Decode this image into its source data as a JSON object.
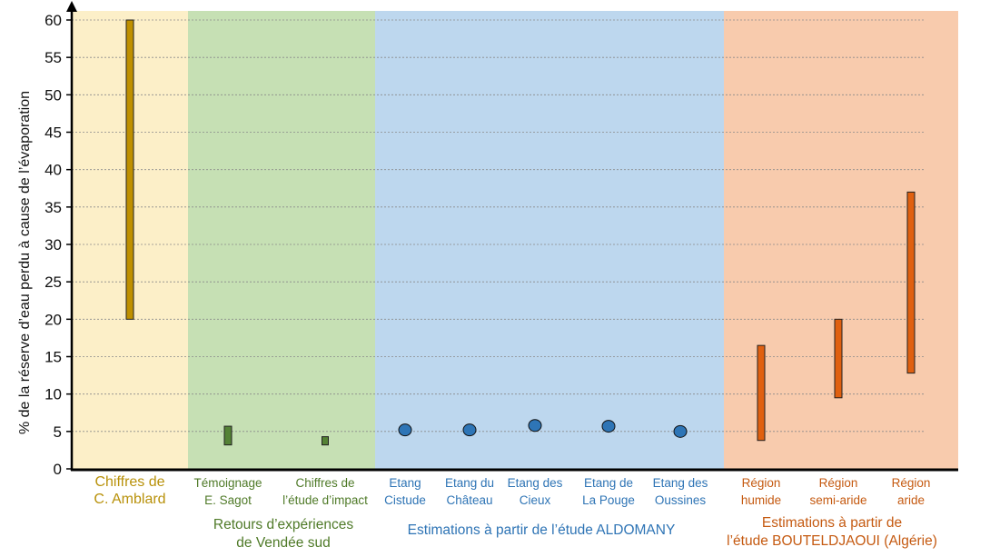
{
  "chart_data": {
    "type": "range",
    "ylabel": "% de la réserve d’eau perdu à cause de l’évaporation",
    "ylim": [
      0,
      60
    ],
    "yticks": [
      0,
      5,
      10,
      15,
      20,
      25,
      30,
      35,
      40,
      45,
      50,
      55,
      60
    ],
    "grid": "horizontal-dashed",
    "groups": [
      {
        "label_lines": [],
        "color": "#fcefc8",
        "text_color": "#b8910a",
        "from": 0,
        "to": 1
      },
      {
        "label_lines": [
          "Retours d’expériences",
          "de Vendée sud"
        ],
        "color": "#c6e0b4",
        "text_color": "#4f7a28",
        "from": 1,
        "to": 3
      },
      {
        "label_lines": [
          "Estimations à partir de l’étude ALDOMANY"
        ],
        "color": "#bdd7ee",
        "text_color": "#2e74b5",
        "from": 3,
        "to": 8
      },
      {
        "label_lines": [
          "Estimations à partir de",
          "l’étude BOUTELDJAOUI (Algérie)"
        ],
        "color": "#f8cbad",
        "text_color": "#c55a11",
        "from": 8,
        "to": 11
      }
    ],
    "points": [
      {
        "label_lines": [
          "Chiffres de",
          "C. Amblard"
        ],
        "kind": "range",
        "low": 20,
        "high": 60,
        "fill": "#bf9000"
      },
      {
        "label_lines": [
          "Témoignage",
          "E. Sagot"
        ],
        "kind": "range",
        "low": 3.2,
        "high": 5.7,
        "fill": "#548235"
      },
      {
        "label_lines": [
          "Chiffres de",
          "l’étude d’impact"
        ],
        "kind": "range",
        "low": 3.2,
        "high": 4.3,
        "fill": "#548235"
      },
      {
        "label_lines": [
          "Etang",
          "Cistude"
        ],
        "kind": "point",
        "value": 5.2,
        "fill": "#2e75b6"
      },
      {
        "label_lines": [
          "Etang du",
          "Château"
        ],
        "kind": "point",
        "value": 5.2,
        "fill": "#2e75b6"
      },
      {
        "label_lines": [
          "Etang des",
          "Cieux"
        ],
        "kind": "point",
        "value": 5.8,
        "fill": "#2e75b6"
      },
      {
        "label_lines": [
          "Etang de",
          "La Pouge"
        ],
        "kind": "point",
        "value": 5.7,
        "fill": "#2e75b6"
      },
      {
        "label_lines": [
          "Etang des",
          "Oussines"
        ],
        "kind": "point",
        "value": 5.0,
        "fill": "#2e75b6"
      },
      {
        "label_lines": [
          "Région",
          "humide"
        ],
        "kind": "range",
        "low": 3.8,
        "high": 16.5,
        "fill": "#e06010"
      },
      {
        "label_lines": [
          "Région",
          "semi-aride"
        ],
        "kind": "range",
        "low": 9.5,
        "high": 20,
        "fill": "#e06010"
      },
      {
        "label_lines": [
          "Région",
          "aride"
        ],
        "kind": "range",
        "low": 12.8,
        "high": 37,
        "fill": "#e06010"
      }
    ]
  }
}
